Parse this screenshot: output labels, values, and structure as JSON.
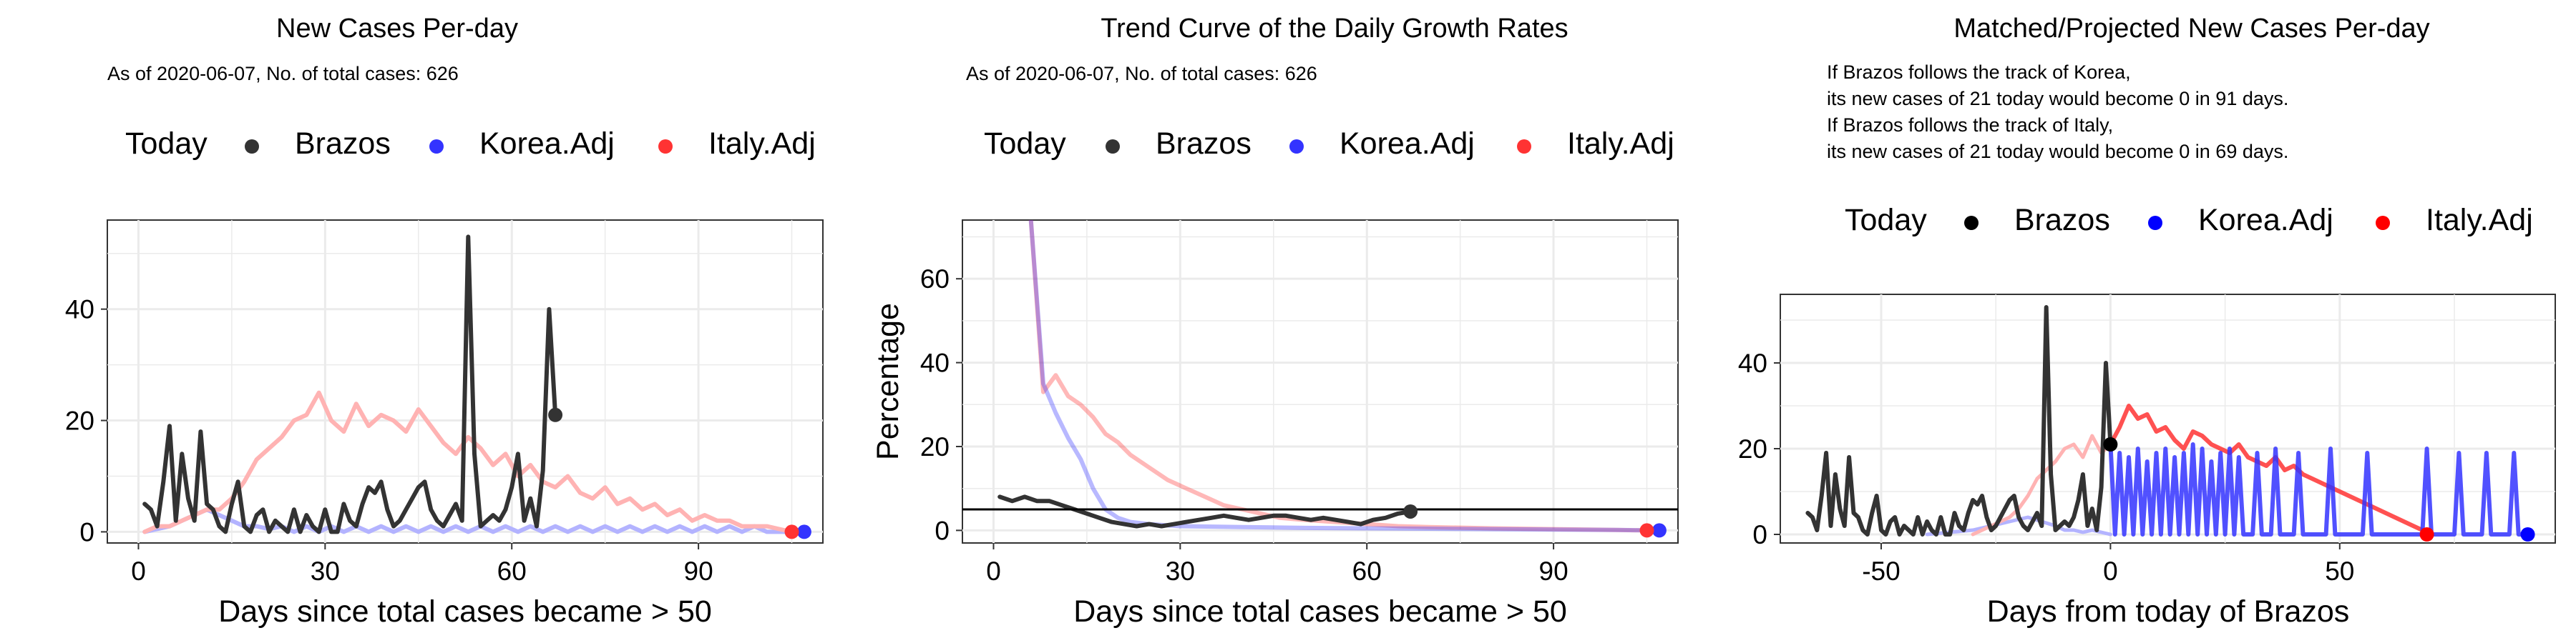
{
  "legend_labels": {
    "today": "Today",
    "brazos": "Brazos",
    "korea": "Korea.Adj",
    "italy": "Italy.Adj"
  },
  "colors": {
    "brazos": "#333333",
    "korea": "#3333ff",
    "italy": "#ff3333",
    "korea_light": "#b3b3ff",
    "italy_light": "#ffb3b3",
    "brazos_p3": "#000000",
    "korea_p3": "#0000ff",
    "italy_p3": "#ff0000",
    "grid": "#ebebeb",
    "panel_border": "#333333"
  },
  "chart_data": [
    {
      "type": "line",
      "title": "New Cases Per-day",
      "subtitle": "As of 2020-06-07, No. of total cases: 626",
      "xlabel": "Days since total cases became > 50",
      "ylabel": "",
      "xlim": [
        -5,
        110
      ],
      "ylim": [
        -2,
        56
      ],
      "xticks": [
        0,
        30,
        60,
        90
      ],
      "yticks": [
        0,
        20,
        40
      ],
      "grid": true,
      "legend_position": "top",
      "series": [
        {
          "name": "Brazos",
          "x": [
            1,
            2,
            3,
            4,
            5,
            6,
            7,
            8,
            9,
            10,
            11,
            12,
            13,
            14,
            15,
            16,
            17,
            18,
            19,
            20,
            21,
            22,
            23,
            24,
            25,
            26,
            27,
            28,
            29,
            30,
            31,
            32,
            33,
            34,
            35,
            36,
            37,
            38,
            39,
            40,
            41,
            42,
            43,
            44,
            45,
            46,
            47,
            48,
            49,
            50,
            51,
            52,
            53,
            54,
            55,
            56,
            57,
            58,
            59,
            60,
            61,
            62,
            63,
            64,
            65,
            66,
            67
          ],
          "y": [
            5,
            4,
            1,
            9,
            19,
            2,
            14,
            6,
            2,
            18,
            5,
            4,
            1,
            0,
            5,
            9,
            1,
            0,
            3,
            4,
            0,
            2,
            1,
            0,
            4,
            0,
            3,
            1,
            0,
            4,
            0,
            0,
            5,
            2,
            1,
            5,
            8,
            7,
            9,
            4,
            1,
            2,
            4,
            6,
            8,
            9,
            4,
            2,
            1,
            3,
            5,
            2,
            53,
            14,
            1,
            2,
            3,
            2,
            4,
            8,
            14,
            2,
            6,
            1,
            11,
            40,
            21
          ]
        },
        {
          "name": "Korea.Adj",
          "x": [
            1,
            3,
            5,
            7,
            9,
            11,
            13,
            15,
            17,
            19,
            21,
            23,
            25,
            27,
            29,
            31,
            33,
            35,
            37,
            39,
            41,
            43,
            45,
            47,
            49,
            51,
            53,
            55,
            57,
            59,
            61,
            63,
            65,
            67,
            69,
            71,
            73,
            75,
            77,
            79,
            81,
            83,
            85,
            87,
            89,
            91,
            93,
            95,
            97,
            99,
            101,
            103,
            105,
            107
          ],
          "y": [
            0,
            0.5,
            1,
            2,
            3,
            4,
            3,
            2,
            1,
            1,
            0.5,
            1,
            0,
            1,
            0,
            1,
            0,
            1,
            0,
            1,
            0,
            1,
            0,
            1,
            0,
            1,
            0,
            1,
            0,
            1,
            0,
            1,
            0,
            1,
            0,
            1,
            0,
            1,
            0,
            1,
            0,
            1,
            0,
            1,
            0,
            1,
            0,
            1,
            0,
            1,
            0,
            0,
            0,
            0
          ]
        },
        {
          "name": "Italy.Adj",
          "x": [
            1,
            3,
            5,
            7,
            9,
            11,
            13,
            15,
            17,
            19,
            21,
            23,
            25,
            27,
            29,
            31,
            33,
            35,
            37,
            39,
            41,
            43,
            45,
            47,
            49,
            51,
            53,
            55,
            57,
            59,
            61,
            63,
            65,
            67,
            69,
            71,
            73,
            75,
            77,
            79,
            81,
            83,
            85,
            87,
            89,
            91,
            93,
            95,
            97,
            99,
            101,
            103,
            105
          ],
          "y": [
            0,
            1,
            1,
            2,
            3,
            4,
            4,
            6,
            9,
            13,
            15,
            17,
            20,
            21,
            25,
            20,
            18,
            23,
            19,
            21,
            20,
            18,
            22,
            19,
            16,
            14,
            17,
            15,
            12,
            14,
            10,
            12,
            9,
            8,
            10,
            7,
            6,
            8,
            5,
            6,
            4,
            5,
            3,
            4,
            2,
            3,
            2,
            2,
            1,
            1,
            1,
            0.5,
            0
          ]
        }
      ],
      "today_points": [
        {
          "series": "Brazos",
          "x": 67,
          "y": 21
        },
        {
          "series": "Korea.Adj",
          "x": 107,
          "y": 0
        },
        {
          "series": "Italy.Adj",
          "x": 105,
          "y": 0
        }
      ]
    },
    {
      "type": "line",
      "title": "Trend Curve of the Daily Growth Rates",
      "subtitle": "As of 2020-06-07, No. of total cases: 626",
      "xlabel": "Days since total cases became > 50",
      "ylabel": "Percentage",
      "xlim": [
        -5,
        110
      ],
      "ylim": [
        -3,
        74
      ],
      "xticks": [
        0,
        30,
        60,
        90
      ],
      "yticks": [
        0,
        20,
        40,
        60
      ],
      "hline": 5,
      "grid": true,
      "legend_position": "top",
      "series": [
        {
          "name": "Brazos",
          "x": [
            1,
            3,
            5,
            7,
            9,
            11,
            13,
            15,
            17,
            19,
            21,
            23,
            25,
            27,
            29,
            31,
            33,
            35,
            37,
            39,
            41,
            43,
            45,
            47,
            49,
            51,
            53,
            55,
            57,
            59,
            61,
            63,
            65,
            67
          ],
          "y": [
            8,
            7,
            8,
            7,
            7,
            6,
            5,
            4,
            3,
            2,
            1.5,
            1,
            1.5,
            1,
            1.5,
            2,
            2.5,
            3,
            3.5,
            3,
            2.5,
            3,
            3.5,
            3.5,
            3,
            2.5,
            3,
            2.5,
            2,
            1.5,
            2.5,
            3,
            4,
            4.5
          ]
        },
        {
          "name": "Korea.Adj",
          "x": [
            6,
            8,
            10,
            12,
            14,
            16,
            18,
            20,
            22,
            25,
            30,
            40,
            50,
            60,
            70,
            80,
            90,
            100,
            107
          ],
          "y": [
            74,
            35,
            28,
            22,
            17,
            10,
            5,
            3,
            2,
            1.5,
            1,
            0.8,
            0.6,
            0.5,
            0.4,
            0.3,
            0.2,
            0.1,
            0
          ]
        },
        {
          "name": "Italy.Adj",
          "x": [
            6,
            8,
            10,
            12,
            14,
            16,
            18,
            20,
            22,
            25,
            28,
            31,
            34,
            37,
            40,
            43,
            46,
            50,
            55,
            60,
            65,
            70,
            80,
            90,
            100,
            105
          ],
          "y": [
            74,
            33,
            37,
            32,
            30,
            27,
            23,
            21,
            18,
            15,
            12,
            10,
            8,
            6,
            5,
            4,
            3,
            2.5,
            2,
            1.5,
            1,
            0.8,
            0.5,
            0.3,
            0.1,
            0
          ]
        }
      ],
      "today_points": [
        {
          "series": "Brazos",
          "x": 67,
          "y": 4.5
        },
        {
          "series": "Korea.Adj",
          "x": 107,
          "y": 0
        },
        {
          "series": "Italy.Adj",
          "x": 105,
          "y": 0
        }
      ]
    },
    {
      "type": "line",
      "title": "Matched/Projected New Cases Per-day",
      "subtitle_lines": [
        "If Brazos follows the track of Korea,",
        "its new cases of 21 today would become 0 in 91 days.",
        "If Brazos follows the track of Italy,",
        "its new cases of 21 today would become 0 in 69 days."
      ],
      "xlabel": "Days from today of Brazos",
      "ylabel": "",
      "xlim": [
        -72,
        97
      ],
      "ylim": [
        -2,
        56
      ],
      "xticks": [
        -50,
        0,
        50
      ],
      "yticks": [
        0,
        20,
        40
      ],
      "grid": true,
      "legend_position": "top",
      "series": [
        {
          "name": "Brazos",
          "x": [
            -66,
            -65,
            -64,
            -63,
            -62,
            -61,
            -60,
            -59,
            -58,
            -57,
            -56,
            -55,
            -54,
            -53,
            -52,
            -51,
            -50,
            -49,
            -48,
            -47,
            -46,
            -45,
            -44,
            -43,
            -42,
            -41,
            -40,
            -39,
            -38,
            -37,
            -36,
            -35,
            -34,
            -33,
            -32,
            -31,
            -30,
            -29,
            -28,
            -27,
            -26,
            -25,
            -24,
            -23,
            -22,
            -21,
            -20,
            -19,
            -18,
            -17,
            -16,
            -15,
            -14,
            -13,
            -12,
            -11,
            -10,
            -9,
            -8,
            -7,
            -6,
            -5,
            -4,
            -3,
            -2,
            -1,
            0
          ],
          "y": [
            5,
            4,
            1,
            9,
            19,
            2,
            14,
            6,
            2,
            18,
            5,
            4,
            1,
            0,
            5,
            9,
            1,
            0,
            3,
            4,
            0,
            2,
            1,
            0,
            4,
            0,
            3,
            1,
            0,
            4,
            0,
            0,
            5,
            2,
            1,
            5,
            8,
            7,
            9,
            4,
            1,
            2,
            4,
            6,
            8,
            9,
            4,
            2,
            1,
            3,
            5,
            2,
            53,
            14,
            1,
            2,
            3,
            2,
            4,
            8,
            14,
            2,
            6,
            1,
            11,
            40,
            21
          ]
        },
        {
          "name": "Korea.Adj (matched)",
          "x": [
            -40,
            -35,
            -30,
            -26,
            -22,
            -18,
            -15,
            -12,
            -10,
            -8,
            -6,
            -4,
            -2,
            0
          ],
          "y": [
            0,
            0.5,
            1,
            2,
            3,
            4,
            3,
            2,
            1,
            1,
            0.5,
            1,
            0.5,
            0
          ]
        },
        {
          "name": "Italy.Adj (matched)",
          "x": [
            -30,
            -28,
            -26,
            -24,
            -22,
            -20,
            -18,
            -16,
            -14,
            -12,
            -10,
            -8,
            -6,
            -4,
            -2,
            0
          ],
          "y": [
            0,
            1,
            2,
            3,
            4,
            6,
            9,
            13,
            15,
            17,
            20,
            21,
            18,
            23,
            19,
            21
          ]
        },
        {
          "name": "Korea.Adj",
          "x": [
            0,
            1,
            2,
            3,
            4,
            5,
            6,
            7,
            8,
            9,
            10,
            11,
            12,
            13,
            14,
            15,
            16,
            17,
            18,
            19,
            20,
            21,
            22,
            23,
            24,
            25,
            26,
            27,
            28,
            29,
            30,
            31,
            32,
            33,
            34,
            35,
            36,
            37,
            38,
            39,
            40,
            41,
            42,
            43,
            44,
            45,
            46,
            47,
            48,
            49,
            50,
            51,
            52,
            53,
            54,
            55,
            56,
            57,
            58,
            59,
            60,
            61,
            62,
            63,
            64,
            65,
            66,
            67,
            68,
            69,
            70,
            71,
            72,
            73,
            74,
            75,
            76,
            77,
            78,
            79,
            80,
            81,
            82,
            83,
            84,
            85,
            86,
            87,
            88,
            89,
            90,
            91
          ],
          "y": [
            21,
            0,
            19,
            0,
            18,
            0,
            20,
            0,
            17,
            0,
            19,
            0,
            20,
            0,
            18,
            0,
            19,
            0,
            21,
            0,
            20,
            0,
            17,
            0,
            19,
            0,
            20,
            0,
            18,
            0,
            0,
            0,
            19,
            0,
            0,
            0,
            20,
            0,
            0,
            0,
            0,
            19,
            0,
            0,
            0,
            0,
            0,
            0,
            20,
            0,
            0,
            0,
            0,
            0,
            0,
            0,
            19,
            0,
            0,
            0,
            0,
            0,
            0,
            0,
            0,
            0,
            0,
            0,
            0,
            20,
            0,
            0,
            0,
            0,
            0,
            0,
            19,
            0,
            0,
            0,
            0,
            0,
            19,
            0,
            0,
            0,
            0,
            0,
            19,
            0,
            0,
            0
          ]
        },
        {
          "name": "Italy.Adj",
          "x": [
            0,
            2,
            4,
            6,
            8,
            10,
            12,
            14,
            16,
            18,
            20,
            22,
            24,
            26,
            28,
            30,
            32,
            34,
            36,
            38,
            40,
            42,
            44,
            46,
            48,
            50,
            52,
            54,
            56,
            58,
            60,
            62,
            64,
            66,
            68,
            69
          ],
          "y": [
            21,
            25,
            30,
            27,
            28,
            24,
            25,
            22,
            20,
            24,
            23,
            21,
            20,
            19,
            21,
            18,
            17,
            16,
            18,
            15,
            16,
            14,
            13,
            12,
            11,
            10,
            9,
            8,
            7,
            6,
            5,
            4,
            3,
            2,
            1,
            0
          ]
        }
      ],
      "today_points": [
        {
          "series": "Brazos",
          "x": 0,
          "y": 21
        },
        {
          "series": "Korea.Adj",
          "x": 91,
          "y": 0
        },
        {
          "series": "Italy.Adj",
          "x": 69,
          "y": 0
        }
      ]
    }
  ]
}
